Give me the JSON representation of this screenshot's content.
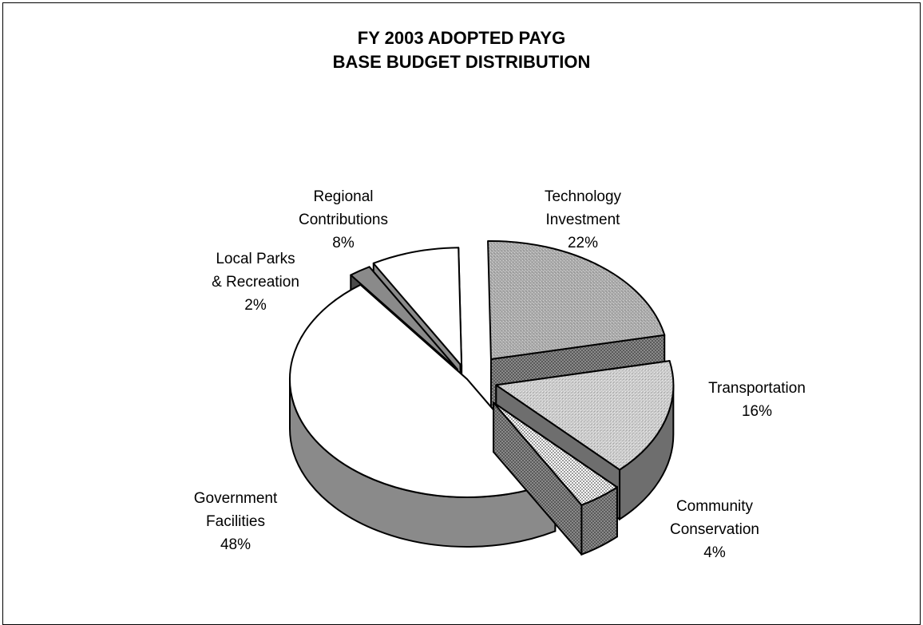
{
  "chart_data": {
    "type": "pie",
    "style": "3d-exploded",
    "title_lines": [
      "FY 2003 ADOPTED PAYG",
      "BASE BUDGET DISTRIBUTION"
    ],
    "slices": [
      {
        "label_lines": [
          "Technology",
          "Investment"
        ],
        "percent_label": "22%",
        "value": 22,
        "top_fill": "speckle-gray",
        "side_fill": "#8c8c8c"
      },
      {
        "label_lines": [
          "Transportation"
        ],
        "percent_label": "16%",
        "value": 16,
        "top_fill": "light-speckle",
        "side_fill": "#6e6e6e"
      },
      {
        "label_lines": [
          "Community",
          "Conservation"
        ],
        "percent_label": "4%",
        "value": 4,
        "top_fill": "checker",
        "side_fill": "#7a7a7a"
      },
      {
        "label_lines": [
          "Government",
          "Facilities"
        ],
        "percent_label": "48%",
        "value": 48,
        "top_fill": "#ffffff",
        "side_fill": "#8a8a8a"
      },
      {
        "label_lines": [
          "Local Parks",
          "& Recreation"
        ],
        "percent_label": "2%",
        "value": 2,
        "top_fill": "#8a8a8a",
        "side_fill": "#4a4a4a"
      },
      {
        "label_lines": [
          "Regional",
          "Contributions"
        ],
        "percent_label": "8%",
        "value": 8,
        "top_fill": "#ffffff",
        "side_fill": "#8a8a8a"
      }
    ]
  }
}
